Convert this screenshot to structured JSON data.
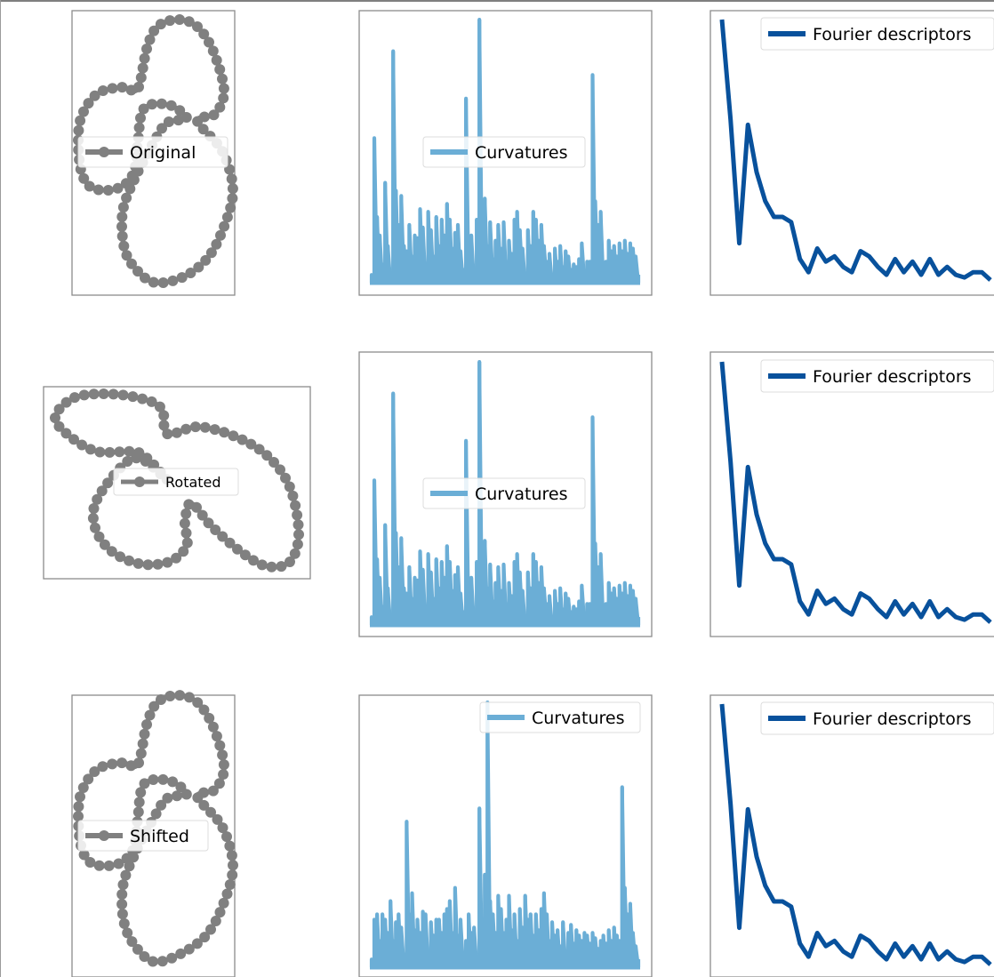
{
  "colors": {
    "shape": "#808080",
    "curvature": "#6baed6",
    "fourier": "#08519c"
  },
  "rows": [
    {
      "shape_label": "Original",
      "curv_label": "Curvatures",
      "fourier_label": "Fourier descriptors"
    },
    {
      "shape_label": "Rotated",
      "curv_label": "Curvatures",
      "fourier_label": "Fourier descriptors"
    },
    {
      "shape_label": "Shifted",
      "curv_label": "Curvatures",
      "fourier_label": "Fourier descriptors"
    }
  ],
  "chart_data": [
    {
      "type": "line",
      "name": "curvatures-original",
      "legend": "Curvatures",
      "x": [
        0,
        1,
        2,
        3,
        4,
        5,
        6,
        7,
        8,
        9,
        10,
        11,
        12,
        13,
        14,
        15,
        16,
        17,
        18,
        19,
        20,
        21,
        22,
        23,
        24,
        25,
        26,
        27,
        28,
        29,
        30,
        31,
        32,
        33,
        34,
        35,
        36,
        37,
        38,
        39,
        40,
        41,
        42,
        43,
        44,
        45,
        46,
        47,
        48,
        49,
        50,
        51,
        52,
        53,
        54,
        55,
        56,
        57,
        58,
        59,
        60,
        61,
        62,
        63,
        64,
        65,
        66,
        67,
        68,
        69,
        70,
        71,
        72,
        73,
        74,
        75,
        76,
        77,
        78,
        79,
        80,
        81,
        82,
        83,
        84,
        85,
        86,
        87,
        88,
        89,
        90,
        91,
        92,
        93,
        94,
        95,
        96,
        97,
        98,
        99
      ],
      "y": [
        0.03,
        0.55,
        0.25,
        0.18,
        0.07,
        0.38,
        0.14,
        0.03,
        0.88,
        0.35,
        0.22,
        0.33,
        0.14,
        0.12,
        0.22,
        0.1,
        0.18,
        0.17,
        0.28,
        0.21,
        0.03,
        0.27,
        0.2,
        0.1,
        0.25,
        0.14,
        0.24,
        0.18,
        0.3,
        0.24,
        0.13,
        0.19,
        0.22,
        0.12,
        0.05,
        0.7,
        0.1,
        0.18,
        0.03,
        0.24,
        1.0,
        0.2,
        0.32,
        0.14,
        0.23,
        0.09,
        0.16,
        0.22,
        0.13,
        0.23,
        0.08,
        0.16,
        0.11,
        0.24,
        0.27,
        0.2,
        0.13,
        0.03,
        0.2,
        0.14,
        0.27,
        0.24,
        0.16,
        0.22,
        0.14,
        0.08,
        0.11,
        0.03,
        0.13,
        0.08,
        0.14,
        0.06,
        0.12,
        0.1,
        0.05,
        0.07,
        0.06,
        0.09,
        0.15,
        0.03,
        0.08,
        0.08,
        0.79,
        0.31,
        0.22,
        0.27,
        0.03,
        0.08,
        0.16,
        0.12,
        0.14,
        0.1,
        0.15,
        0.12,
        0.16,
        0.11,
        0.15,
        0.13,
        0.1,
        0.03
      ]
    },
    {
      "type": "line",
      "name": "curvatures-rotated",
      "legend": "Curvatures",
      "x": [
        0,
        1,
        2,
        3,
        4,
        5,
        6,
        7,
        8,
        9,
        10,
        11,
        12,
        13,
        14,
        15,
        16,
        17,
        18,
        19,
        20,
        21,
        22,
        23,
        24,
        25,
        26,
        27,
        28,
        29,
        30,
        31,
        32,
        33,
        34,
        35,
        36,
        37,
        38,
        39,
        40,
        41,
        42,
        43,
        44,
        45,
        46,
        47,
        48,
        49,
        50,
        51,
        52,
        53,
        54,
        55,
        56,
        57,
        58,
        59,
        60,
        61,
        62,
        63,
        64,
        65,
        66,
        67,
        68,
        69,
        70,
        71,
        72,
        73,
        74,
        75,
        76,
        77,
        78,
        79,
        80,
        81,
        82,
        83,
        84,
        85,
        86,
        87,
        88,
        89,
        90,
        91,
        92,
        93,
        94,
        95,
        96,
        97,
        98,
        99
      ],
      "y": [
        0.03,
        0.55,
        0.25,
        0.18,
        0.07,
        0.38,
        0.14,
        0.03,
        0.88,
        0.35,
        0.22,
        0.33,
        0.14,
        0.12,
        0.22,
        0.1,
        0.18,
        0.17,
        0.28,
        0.21,
        0.03,
        0.27,
        0.2,
        0.1,
        0.25,
        0.14,
        0.24,
        0.18,
        0.3,
        0.24,
        0.13,
        0.19,
        0.22,
        0.12,
        0.05,
        0.7,
        0.1,
        0.18,
        0.03,
        0.24,
        1.0,
        0.2,
        0.32,
        0.14,
        0.23,
        0.09,
        0.16,
        0.22,
        0.13,
        0.23,
        0.08,
        0.16,
        0.11,
        0.24,
        0.27,
        0.2,
        0.13,
        0.03,
        0.2,
        0.14,
        0.27,
        0.24,
        0.16,
        0.22,
        0.14,
        0.08,
        0.11,
        0.03,
        0.13,
        0.08,
        0.14,
        0.06,
        0.12,
        0.1,
        0.05,
        0.07,
        0.06,
        0.09,
        0.15,
        0.03,
        0.08,
        0.08,
        0.79,
        0.31,
        0.22,
        0.27,
        0.03,
        0.08,
        0.16,
        0.12,
        0.14,
        0.1,
        0.15,
        0.12,
        0.16,
        0.11,
        0.15,
        0.13,
        0.1,
        0.03
      ]
    },
    {
      "type": "line",
      "name": "curvatures-shifted",
      "legend": "Curvatures",
      "x": [
        0,
        1,
        2,
        3,
        4,
        5,
        6,
        7,
        8,
        9,
        10,
        11,
        12,
        13,
        14,
        15,
        16,
        17,
        18,
        19,
        20,
        21,
        22,
        23,
        24,
        25,
        26,
        27,
        28,
        29,
        30,
        31,
        32,
        33,
        34,
        35,
        36,
        37,
        38,
        39,
        40,
        41,
        42,
        43,
        44,
        45,
        46,
        47,
        48,
        49,
        50,
        51,
        52,
        53,
        54,
        55,
        56,
        57,
        58,
        59,
        60,
        61,
        62,
        63,
        64,
        65,
        66,
        67,
        68,
        69,
        70,
        71,
        72,
        73,
        74,
        75,
        76,
        77,
        78,
        79,
        80,
        81,
        82,
        83,
        84,
        85,
        86,
        87,
        88,
        89,
        90,
        91,
        92,
        93,
        94,
        95,
        96,
        97,
        98,
        99
      ],
      "y": [
        0.03,
        0.18,
        0.2,
        0.1,
        0.2,
        0.18,
        0.13,
        0.25,
        0.1,
        0.17,
        0.2,
        0.15,
        0.05,
        0.55,
        0.2,
        0.28,
        0.14,
        0.18,
        0.13,
        0.21,
        0.2,
        0.06,
        0.17,
        0.12,
        0.18,
        0.18,
        0.13,
        0.2,
        0.22,
        0.25,
        0.13,
        0.3,
        0.12,
        0.18,
        0.03,
        0.1,
        0.2,
        0.13,
        0.15,
        0.03,
        0.6,
        0.18,
        0.35,
        1.0,
        0.25,
        0.2,
        0.13,
        0.27,
        0.22,
        0.13,
        0.18,
        0.27,
        0.14,
        0.2,
        0.1,
        0.22,
        0.15,
        0.27,
        0.18,
        0.2,
        0.12,
        0.2,
        0.14,
        0.22,
        0.28,
        0.2,
        0.1,
        0.17,
        0.12,
        0.14,
        0.08,
        0.17,
        0.06,
        0.13,
        0.16,
        0.09,
        0.14,
        0.12,
        0.1,
        0.13,
        0.12,
        0.09,
        0.13,
        0.11,
        0.07,
        0.1,
        0.12,
        0.09,
        0.14,
        0.1,
        0.15,
        0.12,
        0.1,
        0.68,
        0.3,
        0.2,
        0.24,
        0.13,
        0.08,
        0.03
      ]
    },
    {
      "type": "line",
      "name": "fourier-original",
      "legend": "Fourier descriptors",
      "x": [
        0,
        1,
        2,
        3,
        4,
        5,
        6,
        7,
        8,
        9,
        10,
        11,
        12,
        13,
        14,
        15,
        16,
        17,
        18,
        19,
        20,
        21,
        22,
        23,
        24,
        25,
        26,
        27,
        28,
        29,
        30,
        31
      ],
      "y": [
        1.0,
        0.62,
        0.15,
        0.6,
        0.42,
        0.31,
        0.25,
        0.25,
        0.23,
        0.09,
        0.04,
        0.13,
        0.08,
        0.1,
        0.06,
        0.04,
        0.12,
        0.1,
        0.06,
        0.03,
        0.09,
        0.04,
        0.08,
        0.03,
        0.09,
        0.03,
        0.06,
        0.03,
        0.02,
        0.04,
        0.04,
        0.01
      ]
    },
    {
      "type": "line",
      "name": "fourier-rotated",
      "legend": "Fourier descriptors",
      "x": [
        0,
        1,
        2,
        3,
        4,
        5,
        6,
        7,
        8,
        9,
        10,
        11,
        12,
        13,
        14,
        15,
        16,
        17,
        18,
        19,
        20,
        21,
        22,
        23,
        24,
        25,
        26,
        27,
        28,
        29,
        30,
        31
      ],
      "y": [
        1.0,
        0.62,
        0.15,
        0.6,
        0.42,
        0.31,
        0.25,
        0.25,
        0.23,
        0.09,
        0.04,
        0.13,
        0.08,
        0.1,
        0.06,
        0.04,
        0.12,
        0.1,
        0.06,
        0.03,
        0.09,
        0.04,
        0.08,
        0.03,
        0.09,
        0.03,
        0.06,
        0.03,
        0.02,
        0.04,
        0.04,
        0.01
      ]
    },
    {
      "type": "line",
      "name": "fourier-shifted",
      "legend": "Fourier descriptors",
      "x": [
        0,
        1,
        2,
        3,
        4,
        5,
        6,
        7,
        8,
        9,
        10,
        11,
        12,
        13,
        14,
        15,
        16,
        17,
        18,
        19,
        20,
        21,
        22,
        23,
        24,
        25,
        26,
        27,
        28,
        29,
        30,
        31
      ],
      "y": [
        1.0,
        0.62,
        0.15,
        0.6,
        0.42,
        0.31,
        0.25,
        0.25,
        0.23,
        0.09,
        0.04,
        0.13,
        0.08,
        0.1,
        0.06,
        0.04,
        0.12,
        0.1,
        0.06,
        0.03,
        0.09,
        0.04,
        0.08,
        0.03,
        0.09,
        0.03,
        0.06,
        0.03,
        0.02,
        0.04,
        0.04,
        0.01
      ]
    }
  ]
}
